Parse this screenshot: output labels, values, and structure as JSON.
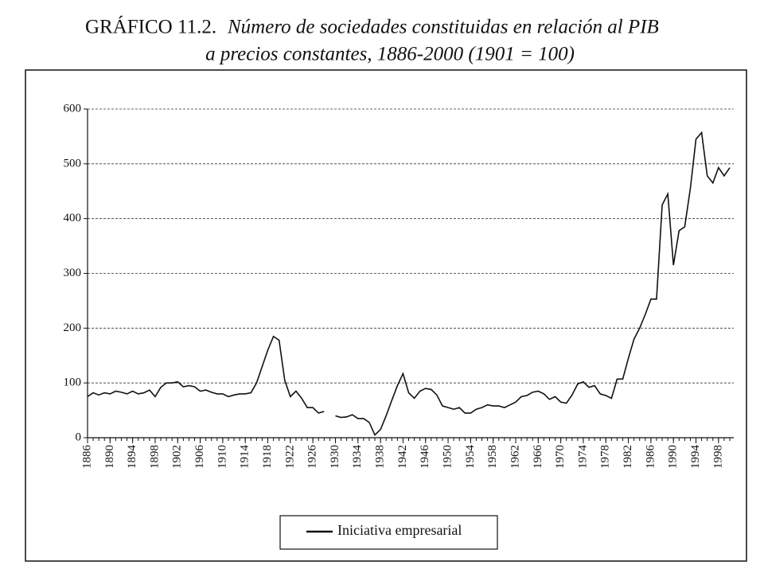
{
  "chart_data": {
    "type": "line",
    "title_label": "GRÁFICO 11.2.",
    "title_lines": [
      "Número de sociedades constituidas en relación al PIB",
      "a precios constantes, 1886-2000 (1901 = 100)"
    ],
    "x": [
      1886,
      1887,
      1888,
      1889,
      1890,
      1891,
      1892,
      1893,
      1894,
      1895,
      1896,
      1897,
      1898,
      1899,
      1900,
      1901,
      1902,
      1903,
      1904,
      1905,
      1906,
      1907,
      1908,
      1909,
      1910,
      1911,
      1912,
      1913,
      1914,
      1915,
      1916,
      1917,
      1918,
      1919,
      1920,
      1921,
      1922,
      1923,
      1924,
      1925,
      1926,
      1927,
      1928,
      1929,
      1930,
      1931,
      1932,
      1933,
      1934,
      1935,
      1936,
      1937,
      1938,
      1939,
      1940,
      1941,
      1942,
      1943,
      1944,
      1945,
      1946,
      1947,
      1948,
      1949,
      1950,
      1951,
      1952,
      1953,
      1954,
      1955,
      1956,
      1957,
      1958,
      1959,
      1960,
      1961,
      1962,
      1963,
      1964,
      1965,
      1966,
      1967,
      1968,
      1969,
      1970,
      1971,
      1972,
      1973,
      1974,
      1975,
      1976,
      1977,
      1978,
      1979,
      1980,
      1981,
      1982,
      1983,
      1984,
      1985,
      1986,
      1987,
      1988,
      1989,
      1990,
      1991,
      1992,
      1993,
      1994,
      1995,
      1996,
      1997,
      1998,
      1999,
      2000
    ],
    "series": [
      {
        "name": "Iniciativa empresarial",
        "color": "#111111",
        "values": [
          75,
          82,
          78,
          82,
          80,
          85,
          83,
          80,
          85,
          80,
          82,
          87,
          75,
          92,
          100,
          100,
          102,
          93,
          95,
          93,
          85,
          87,
          83,
          80,
          80,
          75,
          78,
          80,
          80,
          82,
          100,
          130,
          160,
          185,
          178,
          105,
          75,
          85,
          72,
          55,
          55,
          45,
          48,
          null,
          40,
          37,
          38,
          42,
          35,
          35,
          28,
          5,
          15,
          40,
          68,
          95,
          117,
          82,
          72,
          85,
          90,
          88,
          78,
          58,
          55,
          52,
          55,
          45,
          45,
          52,
          55,
          60,
          58,
          58,
          55,
          60,
          65,
          75,
          77,
          83,
          85,
          80,
          70,
          75,
          65,
          63,
          78,
          98,
          102,
          92,
          95,
          80,
          77,
          72,
          107,
          107,
          145,
          180,
          200,
          225,
          253,
          253,
          425,
          445,
          315,
          378,
          385,
          455,
          545,
          557,
          478,
          465,
          493,
          478,
          493
        ]
      }
    ],
    "xlim": [
      1886,
      2000
    ],
    "xticks": [
      1886,
      1890,
      1894,
      1898,
      1902,
      1906,
      1910,
      1914,
      1918,
      1922,
      1926,
      1930,
      1934,
      1938,
      1942,
      1946,
      1950,
      1954,
      1958,
      1962,
      1966,
      1970,
      1974,
      1978,
      1982,
      1986,
      1990,
      1994,
      1998
    ],
    "ylim": [
      0,
      600
    ],
    "yticks": [
      0,
      100,
      200,
      300,
      400,
      500,
      600
    ],
    "grid": true
  }
}
